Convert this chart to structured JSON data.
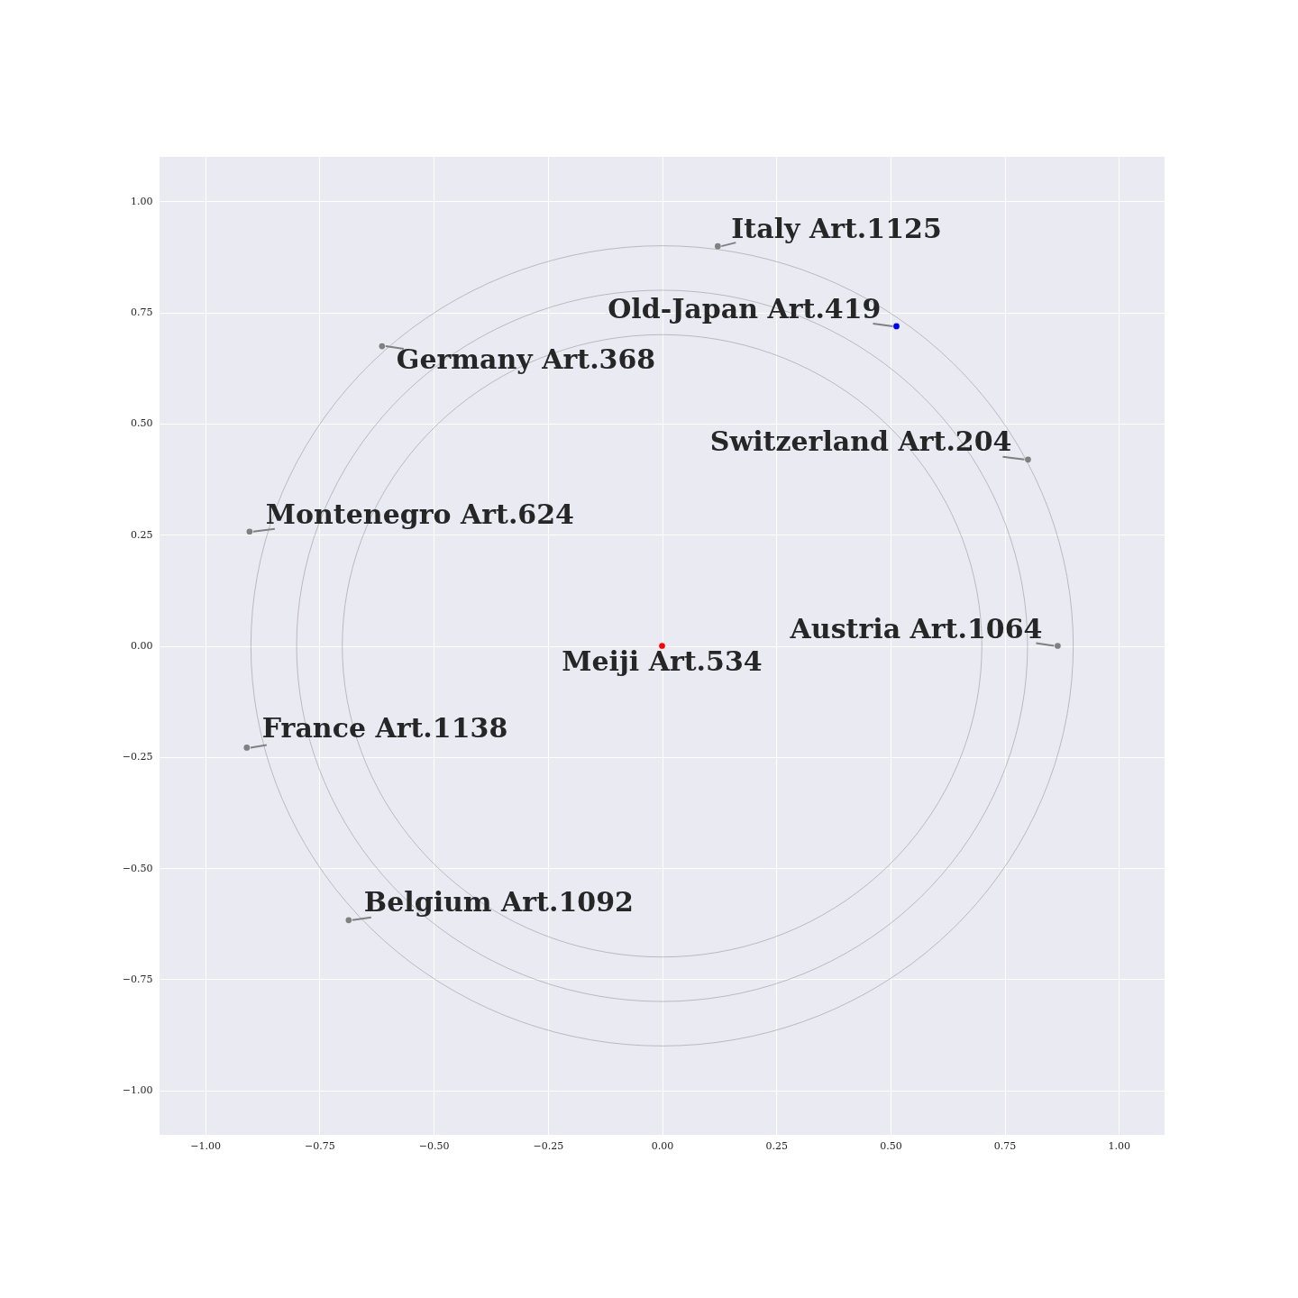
{
  "chart_data": {
    "type": "scatter",
    "xlim": [
      -1.1,
      1.1
    ],
    "ylim": [
      -1.1,
      1.1
    ],
    "xticks": [
      {
        "value": -1.0,
        "label": "−1.00"
      },
      {
        "value": -0.75,
        "label": "−0.75"
      },
      {
        "value": -0.5,
        "label": "−0.50"
      },
      {
        "value": -0.25,
        "label": "−0.25"
      },
      {
        "value": 0.0,
        "label": "0.00"
      },
      {
        "value": 0.25,
        "label": "0.25"
      },
      {
        "value": 0.5,
        "label": "0.50"
      },
      {
        "value": 0.75,
        "label": "0.75"
      },
      {
        "value": 1.0,
        "label": "1.00"
      }
    ],
    "yticks": [
      {
        "value": -1.0,
        "label": "−1.00"
      },
      {
        "value": -0.75,
        "label": "−0.75"
      },
      {
        "value": -0.5,
        "label": "−0.50"
      },
      {
        "value": -0.25,
        "label": "−0.25"
      },
      {
        "value": 0.0,
        "label": "0.00"
      },
      {
        "value": 0.25,
        "label": "0.25"
      },
      {
        "value": 0.5,
        "label": "0.50"
      },
      {
        "value": 0.75,
        "label": "0.75"
      },
      {
        "value": 1.0,
        "label": "1.00"
      }
    ],
    "grid": true,
    "legend": false,
    "series": [
      {
        "type": "scatter",
        "marker": "circle",
        "x": [
          0.122,
          0.513,
          -0.613,
          0.801,
          -0.903,
          0.866,
          0.0,
          -0.909,
          -0.686
        ],
        "values": [
          0.899,
          0.719,
          0.674,
          0.419,
          0.257,
          0.0,
          0.0,
          -0.229,
          -0.617
        ],
        "colors": [
          "#808080",
          "#0000ff",
          "#808080",
          "#808080",
          "#808080",
          "#808080",
          "#ff0000",
          "#808080",
          "#808080"
        ]
      }
    ],
    "annotations": [
      {
        "text": "Italy Art.1125",
        "x": 0.122,
        "y": 0.899
      },
      {
        "text": "Old-Japan Art.419",
        "x": 0.513,
        "y": 0.719
      },
      {
        "text": "Germany Art.368",
        "x": -0.613,
        "y": 0.674
      },
      {
        "text": "Switzerland Art.204",
        "x": 0.801,
        "y": 0.419
      },
      {
        "text": "Montenegro Art.624",
        "x": -0.903,
        "y": 0.257
      },
      {
        "text": "Austria Art.1064",
        "x": 0.866,
        "y": 0.0
      },
      {
        "text": "Meiji Art.534",
        "x": 0.0,
        "y": 0.0
      },
      {
        "text": "France Art.1138",
        "x": -0.909,
        "y": -0.229
      },
      {
        "text": "Belgium Art.1092",
        "x": -0.686,
        "y": -0.617
      }
    ]
  }
}
